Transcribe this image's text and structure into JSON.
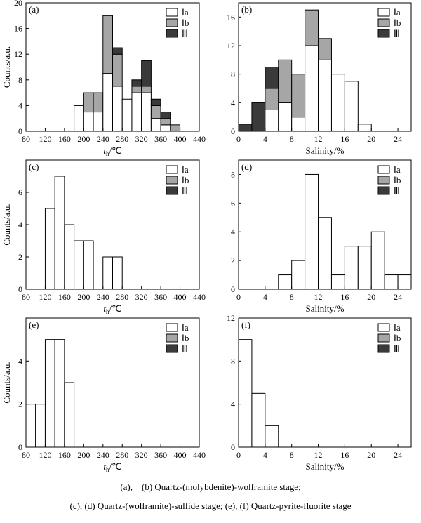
{
  "legend_items": [
    {
      "label": "Ⅰa",
      "color": "#ffffff"
    },
    {
      "label": "Ⅰb",
      "color": "#a6a6a6"
    },
    {
      "label": "Ⅲ",
      "color": "#3a3a3a"
    }
  ],
  "chart_data": [
    {
      "panel": "(a)",
      "type": "bar",
      "stacked": true,
      "xlabel": "t_h/℃",
      "ylabel": "Counts/a.u.",
      "xlim": [
        80,
        440
      ],
      "ylim": [
        0,
        20
      ],
      "xticks": [
        80,
        120,
        160,
        200,
        240,
        280,
        320,
        360,
        400,
        440
      ],
      "yticks": [
        0,
        4,
        8,
        12,
        16,
        20
      ],
      "bin_width": 20,
      "bins": [
        180,
        200,
        220,
        240,
        260,
        280,
        300,
        320,
        340,
        360,
        380
      ],
      "series": [
        {
          "name": "Ⅰa",
          "values": [
            4,
            3,
            3,
            9,
            7,
            5,
            6,
            6,
            2,
            1,
            0
          ]
        },
        {
          "name": "Ⅰb",
          "values": [
            0,
            3,
            3,
            9,
            5,
            0,
            1,
            1,
            2,
            1,
            1
          ]
        },
        {
          "name": "Ⅲ",
          "values": [
            0,
            0,
            0,
            0,
            1,
            0,
            1,
            4,
            1,
            1,
            0
          ]
        }
      ]
    },
    {
      "panel": "(b)",
      "type": "bar",
      "stacked": true,
      "xlabel": "Salinity/%",
      "ylabel": "",
      "xlim": [
        0,
        26
      ],
      "ylim": [
        0,
        18
      ],
      "xticks": [
        0,
        4,
        8,
        12,
        16,
        20,
        24
      ],
      "yticks": [
        0,
        4,
        8,
        12,
        16
      ],
      "bin_width": 2,
      "bins": [
        0,
        2,
        4,
        6,
        8,
        10,
        12,
        14,
        16,
        18
      ],
      "series": [
        {
          "name": "Ⅰa",
          "values": [
            0,
            0,
            3,
            4,
            2,
            12,
            10,
            8,
            7,
            1
          ]
        },
        {
          "name": "Ⅰb",
          "values": [
            0,
            0,
            3,
            6,
            6,
            5,
            3,
            0,
            0,
            0
          ]
        },
        {
          "name": "Ⅲ",
          "values": [
            1,
            4,
            3,
            0,
            0,
            0,
            0,
            0,
            0,
            0
          ]
        }
      ]
    },
    {
      "panel": "(c)",
      "type": "bar",
      "stacked": true,
      "xlabel": "t_h/℃",
      "ylabel": "Counts/a.u.",
      "xlim": [
        80,
        440
      ],
      "ylim": [
        0,
        8
      ],
      "xticks": [
        80,
        120,
        160,
        200,
        240,
        280,
        320,
        360,
        400,
        440
      ],
      "yticks": [
        0,
        2,
        4,
        6
      ],
      "bin_width": 20,
      "bins": [
        120,
        140,
        160,
        180,
        200,
        220,
        240,
        260
      ],
      "series": [
        {
          "name": "Ⅰa",
          "values": [
            5,
            7,
            4,
            3,
            3,
            0,
            2,
            2
          ]
        },
        {
          "name": "Ⅰb",
          "values": [
            0,
            0,
            0,
            0,
            0,
            0,
            0,
            0
          ]
        },
        {
          "name": "Ⅲ",
          "values": [
            0,
            0,
            0,
            0,
            0,
            0,
            0,
            0
          ]
        }
      ]
    },
    {
      "panel": "(d)",
      "type": "bar",
      "stacked": true,
      "xlabel": "Salinity/%",
      "ylabel": "",
      "xlim": [
        0,
        26
      ],
      "ylim": [
        0,
        9
      ],
      "xticks": [
        0,
        4,
        8,
        12,
        16,
        20,
        24
      ],
      "yticks": [
        0,
        2,
        4,
        6,
        8
      ],
      "bin_width": 2,
      "bins": [
        6,
        8,
        10,
        12,
        14,
        16,
        18,
        20,
        22,
        24
      ],
      "series": [
        {
          "name": "Ⅰa",
          "values": [
            1,
            2,
            8,
            5,
            1,
            3,
            3,
            4,
            1,
            1
          ]
        },
        {
          "name": "Ⅰb",
          "values": [
            0,
            0,
            0,
            0,
            0,
            0,
            0,
            0,
            0,
            0
          ]
        },
        {
          "name": "Ⅲ",
          "values": [
            0,
            0,
            0,
            0,
            0,
            0,
            0,
            0,
            0,
            0
          ]
        }
      ]
    },
    {
      "panel": "(e)",
      "type": "bar",
      "stacked": true,
      "xlabel": "t_h/℃",
      "ylabel": "Counts/a.u.",
      "xlim": [
        80,
        440
      ],
      "ylim": [
        0,
        6
      ],
      "xticks": [
        80,
        120,
        160,
        200,
        240,
        280,
        320,
        360,
        400,
        440
      ],
      "yticks": [
        0,
        2,
        4
      ],
      "bin_width": 20,
      "bins": [
        80,
        100,
        120,
        140,
        160
      ],
      "series": [
        {
          "name": "Ⅰa",
          "values": [
            2,
            2,
            5,
            5,
            3
          ]
        },
        {
          "name": "Ⅰb",
          "values": [
            0,
            0,
            0,
            0,
            0
          ]
        },
        {
          "name": "Ⅲ",
          "values": [
            0,
            0,
            0,
            0,
            0
          ]
        }
      ]
    },
    {
      "panel": "(f)",
      "type": "bar",
      "stacked": true,
      "xlabel": "Salinity/%",
      "ylabel": "",
      "xlim": [
        0,
        26
      ],
      "ylim": [
        0,
        12
      ],
      "xticks": [
        0,
        4,
        8,
        12,
        16,
        20,
        24
      ],
      "yticks": [
        0,
        4,
        8,
        12
      ],
      "bin_width": 2,
      "bins": [
        0,
        2,
        4
      ],
      "series": [
        {
          "name": "Ⅰa",
          "values": [
            10,
            5,
            2
          ]
        },
        {
          "name": "Ⅰb",
          "values": [
            0,
            0,
            0
          ]
        },
        {
          "name": "Ⅲ",
          "values": [
            0,
            0,
            0
          ]
        }
      ]
    }
  ],
  "caption": {
    "line1": "(a),　(b)  Quartz-(molybdenite)-wolframite stage;",
    "line2": "(c), (d) Quartz-(wolframite)-sulfide stage; (e), (f) Quartz-pyrite-fluorite stage"
  }
}
